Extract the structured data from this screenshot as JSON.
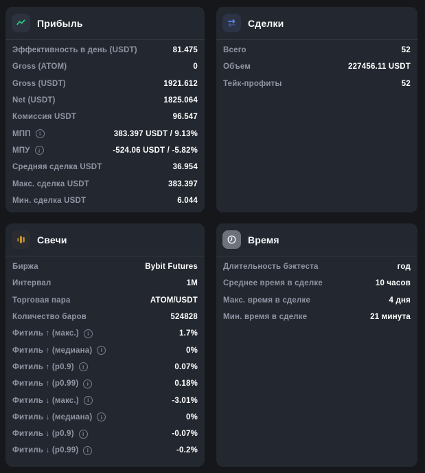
{
  "theme": {
    "page_bg": "#15171b",
    "card_bg": "#232830",
    "divider": "rgba(255,255,255,0.07)",
    "title_color": "#f5f6f8",
    "label_color": "#8f95a3",
    "value_color": "#ffffff",
    "info_color": "#7a8190",
    "icon_bg_dark": "#2c333e",
    "trades_icon_bg": "#2b3345",
    "candles_icon_bg": "#2b2c32",
    "time_icon_bg": "#6e727c",
    "profit_accent": "#2fbe7c",
    "trades_accent": "#5f8bf5",
    "trades_accent_dim": "#49548c",
    "candles_accent": "#e8ae1f",
    "candles_accent_dim": "#9c7d22",
    "candles_accent_mid": "#c09327",
    "time_accent": "#f5f6f7"
  },
  "cards": {
    "profit": {
      "title": "Прибыль",
      "icon": "trend-up-icon",
      "rows": [
        {
          "label": "Эффективность в день (USDT)",
          "value": "81.475",
          "info": false
        },
        {
          "label": "Gross (ATOM)",
          "value": "0",
          "info": false
        },
        {
          "label": "Gross (USDT)",
          "value": "1921.612",
          "info": false
        },
        {
          "label": "Net (USDT)",
          "value": "1825.064",
          "info": false
        },
        {
          "label": "Комиссия USDT",
          "value": "96.547",
          "info": false
        },
        {
          "label": "МПП",
          "value": "383.397 USDT / 9.13%",
          "info": true
        },
        {
          "label": "МПУ",
          "value": "-524.06 USDT / -5.82%",
          "info": true
        },
        {
          "label": "Средняя сделка USDT",
          "value": "36.954",
          "info": false
        },
        {
          "label": "Макс. сделка USDT",
          "value": "383.397",
          "info": false
        },
        {
          "label": "Мин. сделка USDT",
          "value": "6.044",
          "info": false
        }
      ]
    },
    "trades": {
      "title": "Сделки",
      "icon": "swap-arrows-icon",
      "rows": [
        {
          "label": "Всего",
          "value": "52",
          "info": false
        },
        {
          "label": "Объем",
          "value": "227456.11 USDT",
          "info": false
        },
        {
          "label": "Тейк-профиты",
          "value": "52",
          "info": false
        }
      ]
    },
    "candles": {
      "title": "Свечи",
      "icon": "candlestick-icon",
      "rows": [
        {
          "label": "Биржа",
          "value": "Bybit Futures",
          "info": false
        },
        {
          "label": "Интервал",
          "value": "1M",
          "info": false
        },
        {
          "label": "Торговая пара",
          "value": "ATOM/USDT",
          "info": false
        },
        {
          "label": "Количество баров",
          "value": "524828",
          "info": false
        },
        {
          "label": "Фитиль ↑ (макс.)",
          "value": "1.7%",
          "info": true
        },
        {
          "label": "Фитиль ↑ (медиана)",
          "value": "0%",
          "info": true
        },
        {
          "label": "Фитиль ↑ (p0.9)",
          "value": "0.07%",
          "info": true
        },
        {
          "label": "Фитиль ↑ (p0.99)",
          "value": "0.18%",
          "info": true
        },
        {
          "label": "Фитиль ↓ (макс.)",
          "value": "-3.01%",
          "info": true
        },
        {
          "label": "Фитиль ↓ (медиана)",
          "value": "0%",
          "info": true
        },
        {
          "label": "Фитиль ↓ (p0.9)",
          "value": "-0.07%",
          "info": true
        },
        {
          "label": "Фитиль ↓ (p0.99)",
          "value": "-0.2%",
          "info": true
        }
      ]
    },
    "time": {
      "title": "Время",
      "icon": "clock-icon",
      "rows": [
        {
          "label": "Длительность бэктеста",
          "value": "год",
          "info": false
        },
        {
          "label": "Среднее время в сделке",
          "value": "10 часов",
          "info": false
        },
        {
          "label": "Макс. время в сделке",
          "value": "4 дня",
          "info": false
        },
        {
          "label": "Мин. время в сделке",
          "value": "21 минута",
          "info": false
        }
      ]
    }
  }
}
